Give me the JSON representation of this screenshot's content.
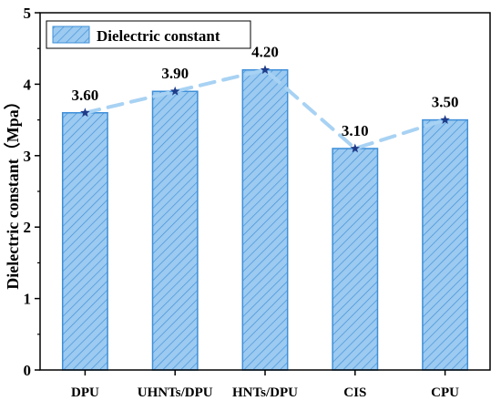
{
  "chart_data": {
    "type": "bar",
    "categories": [
      "DPU",
      "UHNTs/DPU",
      "HNTs/DPU",
      "CIS",
      "CPU"
    ],
    "series": [
      {
        "name": "Dielectric constant",
        "values": [
          3.6,
          3.9,
          4.2,
          3.1,
          3.5
        ]
      }
    ],
    "data_labels": [
      "3.60",
      "3.90",
      "4.20",
      "3.10",
      "3.50"
    ],
    "ylabel": "Dielectric constant（Mpa）",
    "xlabel": "",
    "ylim": [
      0,
      5
    ],
    "yticks": [
      0,
      1,
      2,
      3,
      4,
      5
    ],
    "grid": false,
    "legend_position": "top-left",
    "overlay_line": {
      "style": "dashed",
      "marker": "star",
      "follows": "bar tops"
    },
    "colors": {
      "bar_fill": "#9ccaf0",
      "bar_stroke": "#3d8fd9",
      "hatch": "#3d8fd9",
      "line": "#a8d2f3",
      "marker": "#1f3b88"
    }
  }
}
